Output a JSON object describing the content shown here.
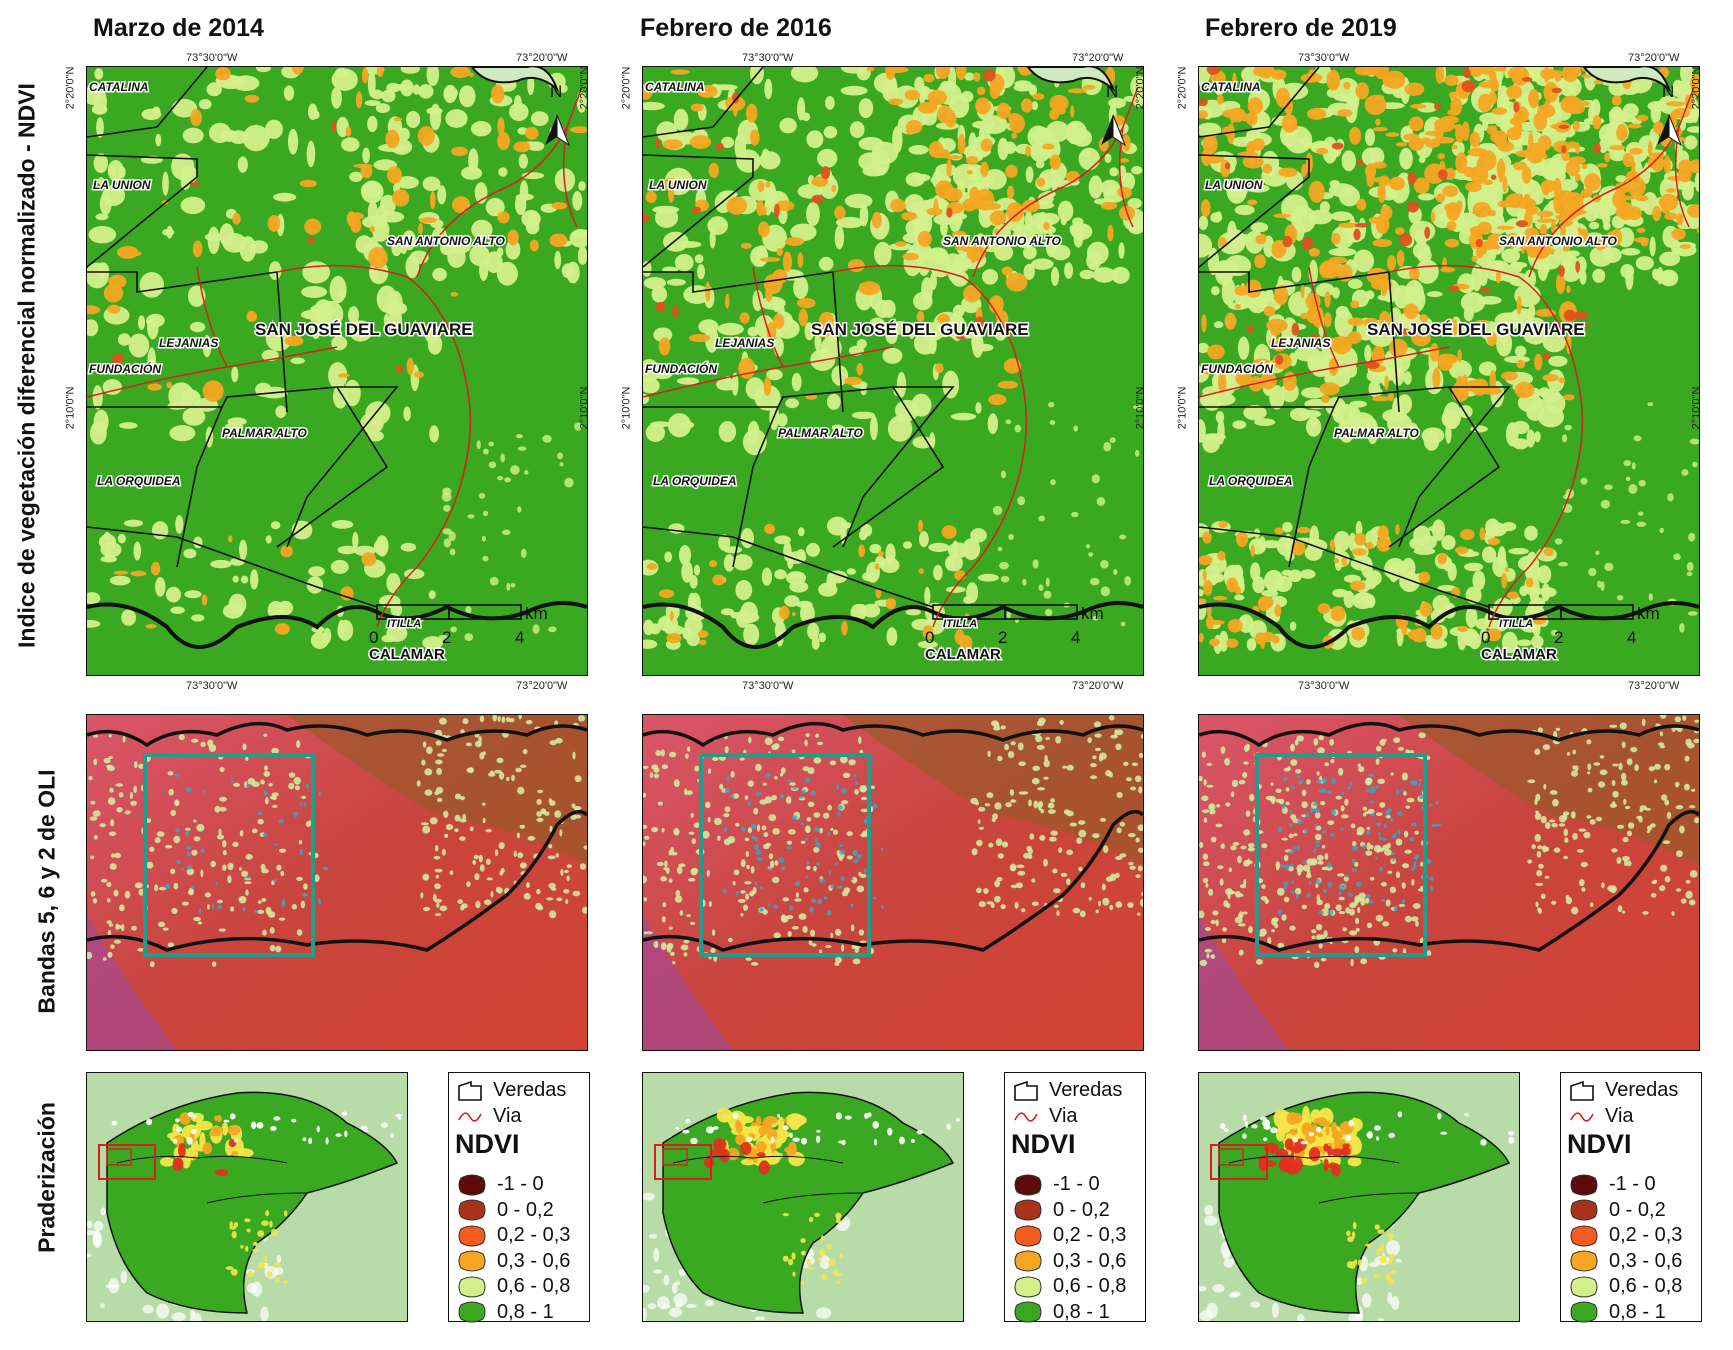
{
  "columns": [
    {
      "title": "Marzo de 2014"
    },
    {
      "title": "Febrero de 2016"
    },
    {
      "title": "Febrero de 2019"
    }
  ],
  "row_labels": {
    "ndvi": "Indice de vegetación diferencial normalizado - NDVI",
    "bands": "Bandas 5, 6 y 2 de OLI",
    "praderizacion": "Praderización"
  },
  "coords": {
    "lon_left": "73°30'0\"W",
    "lon_right": "73°20'0\"W",
    "lat_top": "2°20'0\"N",
    "lat_mid": "2°10'0\"N"
  },
  "north_arrow": "N",
  "scale_bar": {
    "ticks": [
      "0",
      "2",
      "4"
    ],
    "unit": "km"
  },
  "places": {
    "catalina": "CATALINA",
    "la_union": "LA UNION",
    "san_antonio": "SAN ANTONIO ALTO",
    "lejanias": "LEJANIAS",
    "san_jose": "SAN JOSÉ DEL GUAVIARE",
    "fundacion": "FUNDACIÓN",
    "palmar_alto": "PALMAR ALTO",
    "la_orquidea": "LA ORQUIDEA",
    "itilla": "ITILLA",
    "calamar": "CALAMAR"
  },
  "legend": {
    "veredas": "Veredas",
    "via": "Via",
    "title": "NDVI",
    "classes": [
      {
        "label": "-1 - 0",
        "color": "#5c0a0a"
      },
      {
        "label": "0 - 0,2",
        "color": "#a8321c"
      },
      {
        "label": "0,2 - 0,3",
        "color": "#f25c1e"
      },
      {
        "label": "0,3 - 0,6",
        "color": "#f5a623"
      },
      {
        "label": "0,6 - 0,8",
        "color": "#d4f08c"
      },
      {
        "label": "0,8 - 1",
        "color": "#3aa820"
      }
    ]
  },
  "colors": {
    "forest": "#3aa820",
    "pasture": "#d4f08c",
    "orange": "#f5a623",
    "red": "#e0501e",
    "road": "#d8201a",
    "box": "#1f9e8e",
    "false_color": "#c8443c"
  }
}
